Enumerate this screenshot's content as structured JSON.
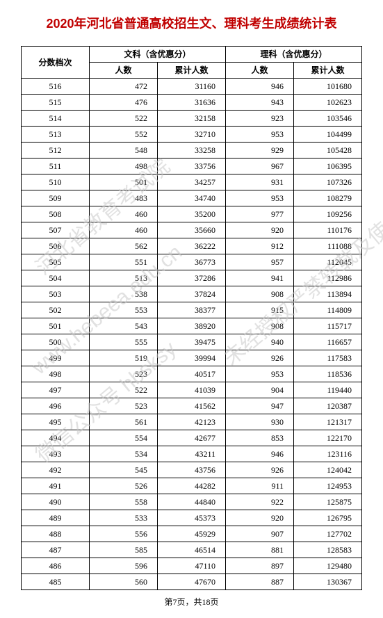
{
  "title": "2020年河北省普通高校招生文、理科考生成绩统计表",
  "headers": {
    "score": "分数档次",
    "wenke": "文科（含优惠分）",
    "like": "理科（含优惠分）",
    "count": "人数",
    "cumulative": "累计人数"
  },
  "columns": [
    "score",
    "wk_count",
    "wk_cum",
    "lk_count",
    "lk_cum"
  ],
  "column_align": [
    "center",
    "right",
    "right",
    "right",
    "right"
  ],
  "rows": [
    [
      516,
      472,
      31160,
      946,
      101680
    ],
    [
      515,
      476,
      31636,
      943,
      102623
    ],
    [
      514,
      522,
      32158,
      923,
      103546
    ],
    [
      513,
      552,
      32710,
      953,
      104499
    ],
    [
      512,
      548,
      33258,
      929,
      105428
    ],
    [
      511,
      498,
      33756,
      967,
      106395
    ],
    [
      510,
      501,
      34257,
      931,
      107326
    ],
    [
      509,
      483,
      34740,
      953,
      108279
    ],
    [
      508,
      460,
      35200,
      977,
      109256
    ],
    [
      507,
      460,
      35660,
      920,
      110176
    ],
    [
      506,
      562,
      36222,
      912,
      111088
    ],
    [
      505,
      551,
      36773,
      957,
      112045
    ],
    [
      504,
      513,
      37286,
      941,
      112986
    ],
    [
      503,
      538,
      37824,
      908,
      113894
    ],
    [
      502,
      553,
      38377,
      915,
      114809
    ],
    [
      501,
      543,
      38920,
      908,
      115717
    ],
    [
      500,
      555,
      39475,
      940,
      116657
    ],
    [
      499,
      519,
      39994,
      926,
      117583
    ],
    [
      498,
      523,
      40517,
      953,
      118536
    ],
    [
      497,
      522,
      41039,
      904,
      119440
    ],
    [
      496,
      523,
      41562,
      947,
      120387
    ],
    [
      495,
      561,
      42123,
      930,
      121317
    ],
    [
      494,
      554,
      42677,
      853,
      122170
    ],
    [
      493,
      534,
      43211,
      946,
      123116
    ],
    [
      492,
      545,
      43756,
      926,
      124042
    ],
    [
      491,
      526,
      44282,
      911,
      124953
    ],
    [
      490,
      558,
      44840,
      922,
      125875
    ],
    [
      489,
      533,
      45373,
      920,
      126795
    ],
    [
      488,
      556,
      45929,
      907,
      127702
    ],
    [
      487,
      585,
      46514,
      881,
      128583
    ],
    [
      486,
      596,
      47110,
      897,
      129480
    ],
    [
      485,
      560,
      47670,
      887,
      130367
    ]
  ],
  "footer": {
    "page_current": 7,
    "page_total": 18,
    "template": "第{c}页，共{t}页"
  },
  "watermarks": {
    "w1": "河北省教育考试院",
    "w2": "www.hebeea.edu.cn",
    "w3": "微信公众号 hbsksy",
    "w4": "未经授权严禁转载及使用"
  },
  "styling": {
    "title_color": "#c00000",
    "title_fontsize": 18,
    "body_fontsize": 12,
    "border_color": "#000000",
    "background_color": "#ffffff",
    "watermark_color": "rgba(200,200,200,0.55)",
    "watermark_angle_deg": -40
  }
}
